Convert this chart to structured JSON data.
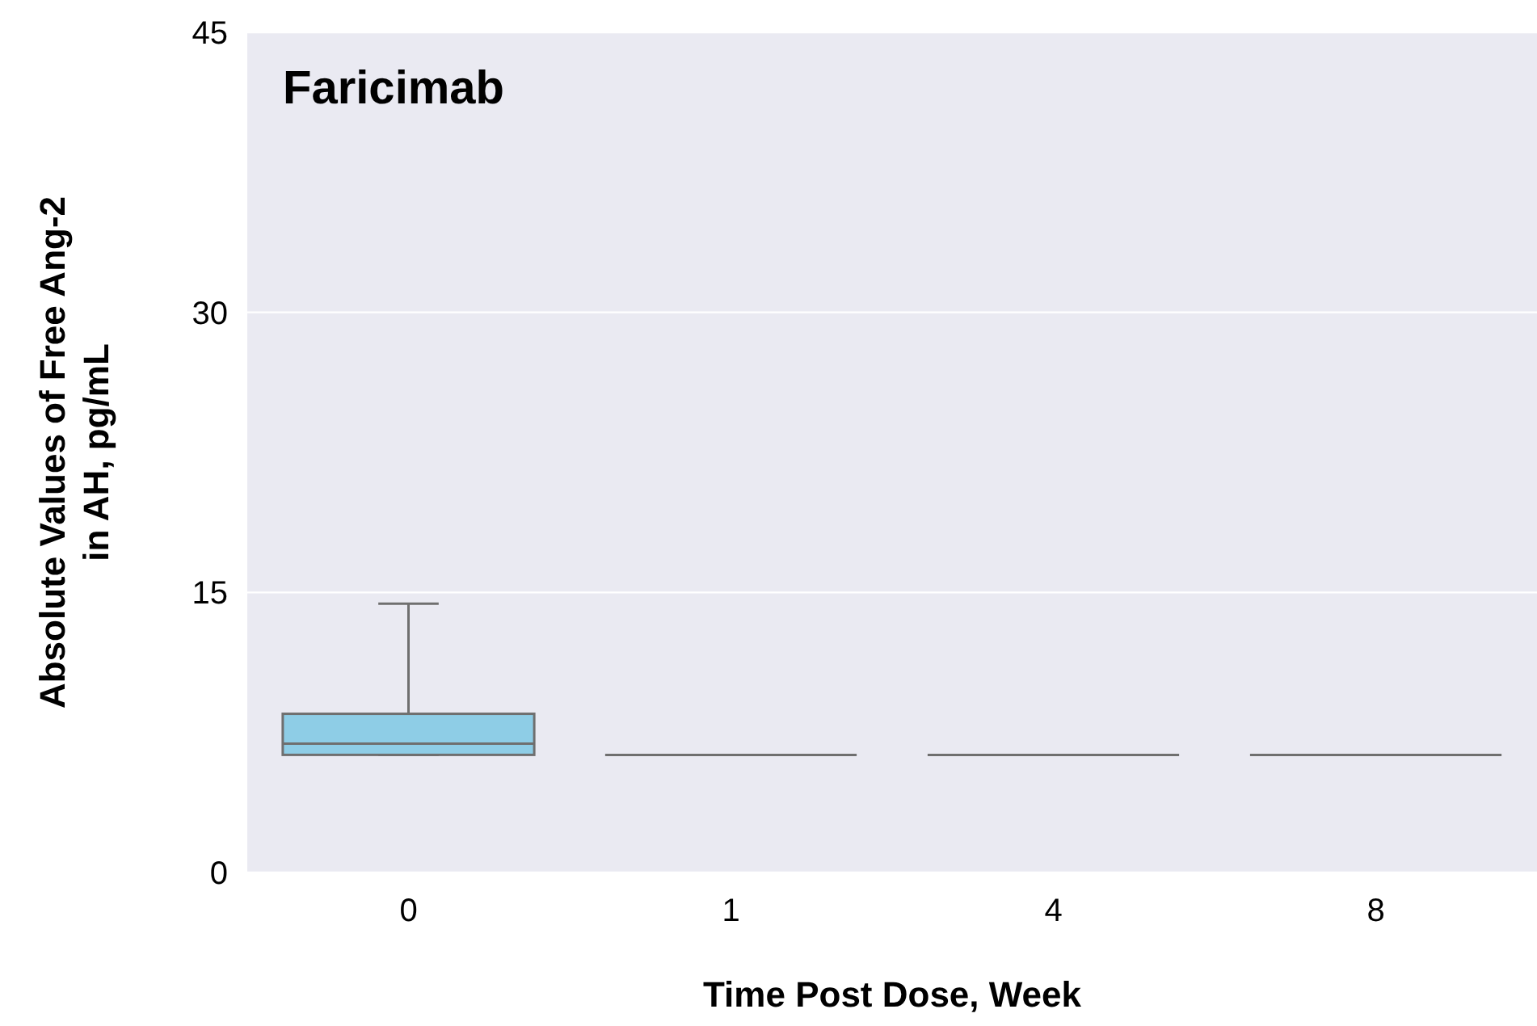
{
  "chart_data": {
    "type": "box",
    "title": "Faricimab",
    "xlabel": "Time Post Dose, Week",
    "ylabel": "Absolute Values of Free Ang-2\nin AH, pg/mL",
    "categories": [
      "0",
      "1",
      "4",
      "8"
    ],
    "series": [
      {
        "colors": [
          "#8ecde6",
          "#6f6f6f",
          "#6f6f6f",
          "#6f6f6f"
        ],
        "boxes": [
          {
            "low": 6.3,
            "q1": 6.3,
            "median": 6.9,
            "q3": 8.5,
            "high": 14.4
          },
          {
            "low": 6.3,
            "q1": 6.3,
            "median": 6.3,
            "q3": 6.3,
            "high": 6.3
          },
          {
            "low": 6.3,
            "q1": 6.3,
            "median": 6.3,
            "q3": 6.3,
            "high": 6.3
          },
          {
            "low": 6.3,
            "q1": 6.3,
            "median": 6.3,
            "q3": 6.3,
            "high": 6.3
          }
        ]
      }
    ],
    "ylim": [
      0,
      45
    ],
    "yticks": [
      0,
      15,
      30,
      45
    ],
    "grid": "y"
  }
}
